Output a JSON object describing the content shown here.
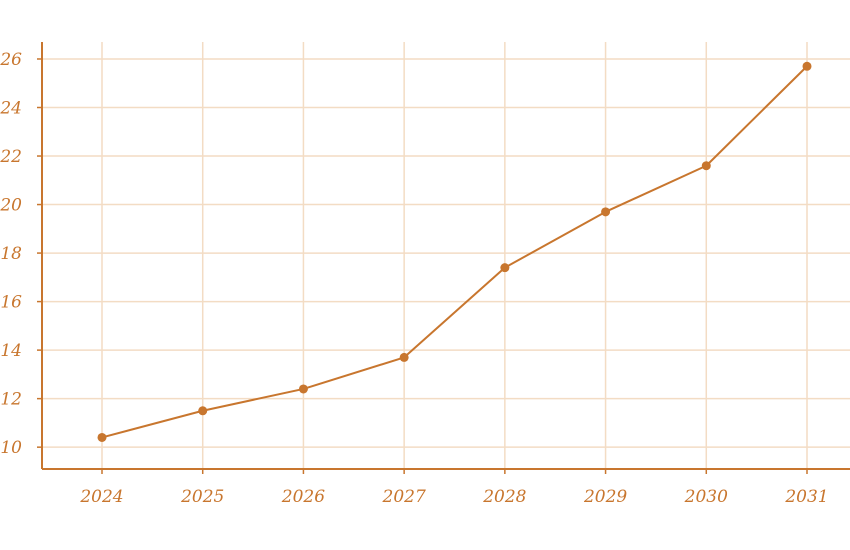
{
  "chart_data": {
    "type": "line",
    "title": "",
    "xlabel": "",
    "ylabel": "",
    "x": [
      "2024",
      "2025",
      "2026",
      "2027",
      "2028",
      "2029",
      "2030",
      "2031"
    ],
    "series": [
      {
        "values": [
          10.4,
          11.5,
          12.4,
          13.7,
          17.4,
          19.7,
          21.6,
          25.7
        ]
      }
    ],
    "ylim": [
      9.1,
      26.7
    ],
    "yticks": [
      10,
      12,
      14,
      16,
      18,
      20,
      22,
      24,
      26
    ],
    "grid": true,
    "legend": "none",
    "colors": {
      "line": "#c8762e",
      "marker": "#c8762e",
      "axis": "#c8762e",
      "grid": "#f3dcc4",
      "text": "#c8762e"
    }
  }
}
